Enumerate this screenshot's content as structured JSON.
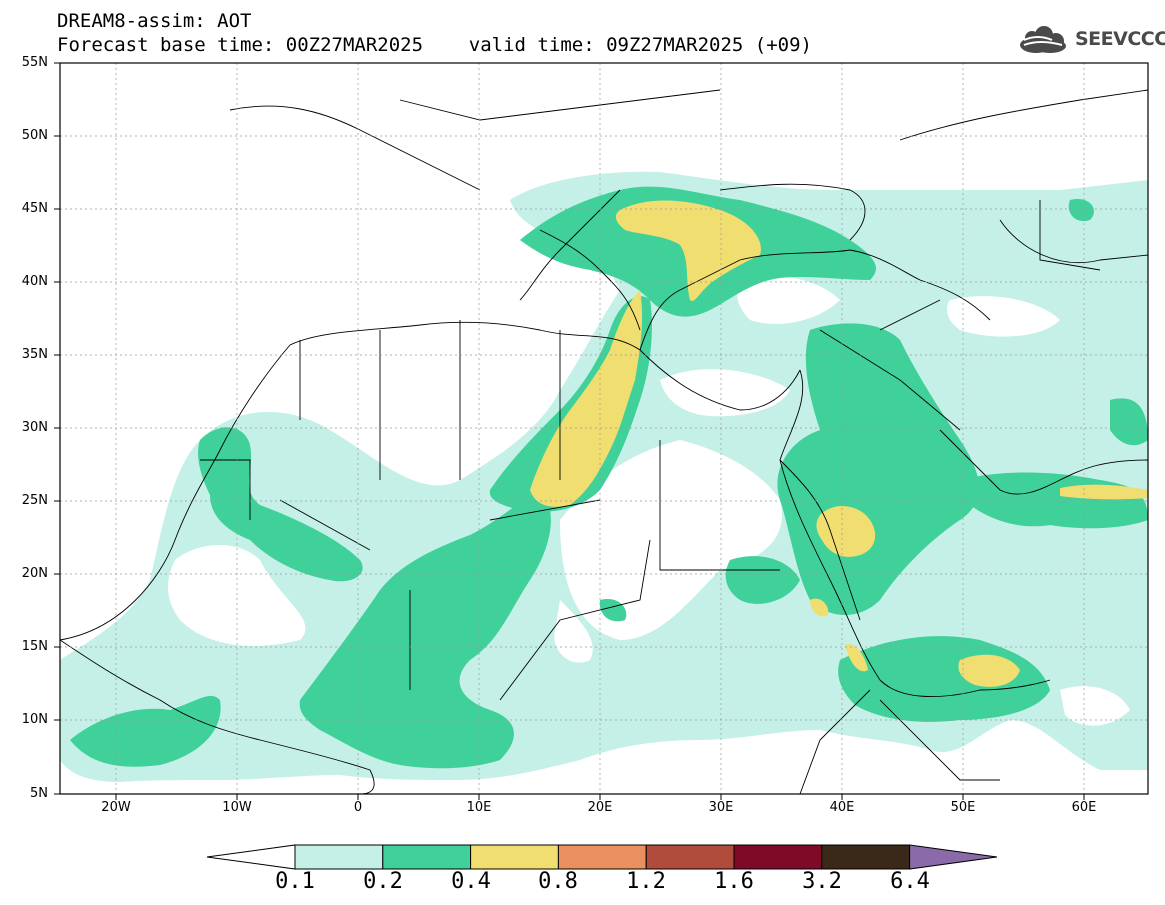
{
  "header": {
    "line1": "DREAM8-assim: AOT",
    "line2": "Forecast base time: 00Z27MAR2025    valid time: 09Z27MAR2025 (+09)"
  },
  "logo": {
    "text": "SEEVCCC",
    "icon": "cloud-icon",
    "color": "#4a4a4a"
  },
  "map": {
    "lat_labels": [
      "55N",
      "50N",
      "45N",
      "40N",
      "35N",
      "30N",
      "25N",
      "20N",
      "15N",
      "10N",
      "5N"
    ],
    "lon_labels": [
      "20W",
      "10W",
      "0",
      "10E",
      "20E",
      "30E",
      "40E",
      "50E",
      "60E"
    ]
  },
  "colorbar": {
    "labels": [
      "0.1",
      "0.2",
      "0.4",
      "0.8",
      "1.2",
      "1.6",
      "3.2",
      "6.4"
    ],
    "colors": [
      "#c5f0e8",
      "#40d09a",
      "#f0df70",
      "#ea8f60",
      "#b04c3c",
      "#7e0a28",
      "#3a2818",
      "#8a6aa8"
    ]
  }
}
